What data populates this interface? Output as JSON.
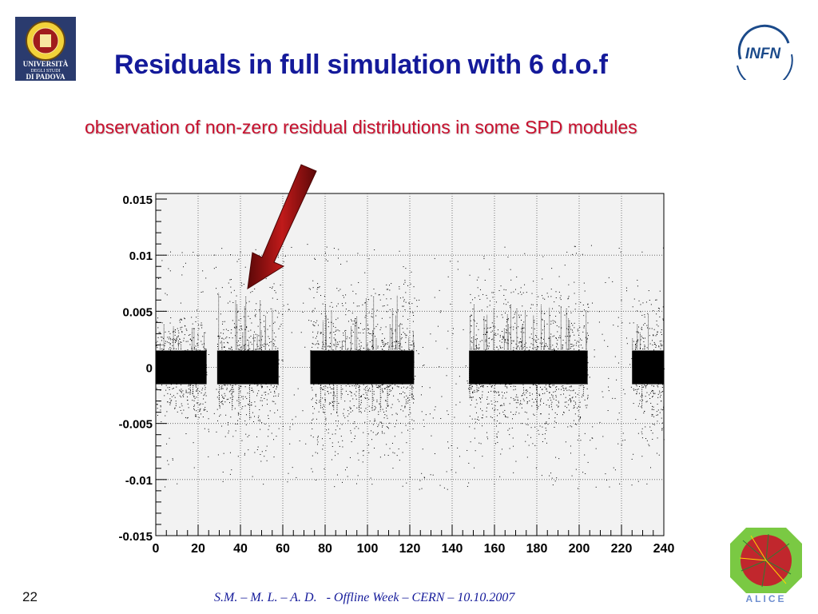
{
  "slide": {
    "title_part1": "Residuals in full simulation",
    "title_part2": "with 6 d.o.f",
    "subtitle": "observation of non-zero residual distributions in some SPD modules",
    "page_number": "22",
    "footer": "S.M. – M. L. – A. D.   - Offline Week – CERN – 10.10.2007"
  },
  "logos": {
    "padova": {
      "icon": "university-of-padova-seal",
      "line1": "UNIVERSITÀ",
      "line2": "DEGLI STUDI",
      "line3": "DI PADOVA"
    },
    "infn": {
      "icon": "infn-logo",
      "text": "INFN"
    },
    "alice": {
      "icon": "alice-experiment-logo",
      "text": "ALICE"
    }
  },
  "arrow": {
    "icon": "red-arrow-icon",
    "color": "#8b0d0d"
  },
  "chart_data": {
    "type": "scatter",
    "title": "",
    "xlabel": "",
    "ylabel": "",
    "xlim": [
      0,
      240
    ],
    "ylim": [
      -0.015,
      0.015
    ],
    "x_ticks": [
      "0",
      "20",
      "40",
      "60",
      "80",
      "100",
      "120",
      "140",
      "160",
      "180",
      "200",
      "220",
      "240"
    ],
    "y_ticks": [
      "0.015",
      "0.01",
      "0.005",
      "0",
      "-0.005",
      "-0.01",
      "-0.015"
    ],
    "grid": true,
    "legend": "none",
    "background": "#f2f2f2",
    "point_color": "#000000",
    "clusters": [
      {
        "x_range": [
          0,
          24
        ],
        "core_halfwidth": 0.0015,
        "tail_max": 0.0045
      },
      {
        "x_range": [
          29,
          58
        ],
        "core_halfwidth": 0.0015,
        "tail_max": 0.008
      },
      {
        "x_range": [
          73,
          122
        ],
        "core_halfwidth": 0.0015,
        "tail_max": 0.008
      },
      {
        "x_range": [
          148,
          204
        ],
        "core_halfwidth": 0.0015,
        "tail_max": 0.007
      },
      {
        "x_range": [
          225,
          240
        ],
        "core_halfwidth": 0.0015,
        "tail_max": 0.007
      }
    ]
  }
}
